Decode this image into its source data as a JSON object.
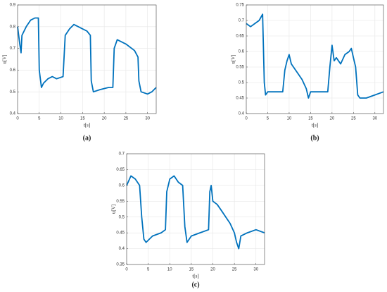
{
  "chart_data": [
    {
      "type": "line",
      "label": "(a)",
      "xlabel": "t[s]",
      "ylabel": "u[V]",
      "color": "#0072bd",
      "grid": true,
      "xlim": [
        0,
        32
      ],
      "xticks": [
        0,
        5,
        10,
        15,
        20,
        25,
        30
      ],
      "ylim": [
        0.4,
        0.9
      ],
      "yticks": [
        0.4,
        0.5,
        0.6,
        0.7,
        0.8,
        0.9
      ],
      "x": [
        0,
        0.5,
        0.8,
        1,
        2,
        3,
        4,
        4.8,
        5,
        5.5,
        6,
        7,
        8,
        9,
        10.5,
        11,
        12,
        13,
        14,
        15,
        16,
        16.8,
        17,
        17.5,
        19,
        21,
        22,
        22.3,
        23,
        25,
        27,
        27.8,
        28,
        28.5,
        30,
        31,
        32
      ],
      "values": [
        0.8,
        0.72,
        0.68,
        0.76,
        0.8,
        0.83,
        0.84,
        0.84,
        0.6,
        0.52,
        0.54,
        0.56,
        0.57,
        0.56,
        0.57,
        0.76,
        0.79,
        0.81,
        0.8,
        0.79,
        0.78,
        0.76,
        0.55,
        0.5,
        0.51,
        0.52,
        0.52,
        0.7,
        0.74,
        0.72,
        0.69,
        0.66,
        0.55,
        0.5,
        0.49,
        0.5,
        0.52
      ]
    },
    {
      "type": "line",
      "label": "(b)",
      "xlabel": "t[s]",
      "ylabel": "u[V]",
      "color": "#0072bd",
      "grid": true,
      "xlim": [
        0,
        32
      ],
      "xticks": [
        0,
        5,
        10,
        15,
        20,
        25,
        30
      ],
      "ylim": [
        0.4,
        0.75
      ],
      "yticks": [
        0.4,
        0.45,
        0.5,
        0.55,
        0.6,
        0.65,
        0.7,
        0.75
      ],
      "x": [
        0,
        1,
        2,
        3,
        3.8,
        4.2,
        4.5,
        5,
        7,
        8.5,
        9,
        9.5,
        10,
        10.5,
        12,
        13,
        14,
        14.5,
        15,
        17,
        19,
        19.5,
        20,
        20.5,
        21,
        22,
        23,
        24,
        24.5,
        25,
        25.5,
        26,
        26.5,
        28,
        30,
        32
      ],
      "values": [
        0.69,
        0.68,
        0.69,
        0.7,
        0.72,
        0.5,
        0.46,
        0.47,
        0.47,
        0.47,
        0.54,
        0.57,
        0.59,
        0.56,
        0.53,
        0.51,
        0.48,
        0.45,
        0.47,
        0.47,
        0.47,
        0.55,
        0.62,
        0.57,
        0.58,
        0.56,
        0.59,
        0.6,
        0.61,
        0.58,
        0.55,
        0.46,
        0.45,
        0.45,
        0.46,
        0.47
      ]
    },
    {
      "type": "line",
      "label": "(c)",
      "xlabel": "t[s]",
      "ylabel": "u[V]",
      "color": "#0072bd",
      "grid": true,
      "xlim": [
        0,
        32
      ],
      "xticks": [
        0,
        5,
        10,
        15,
        20,
        25,
        30
      ],
      "ylim": [
        0.35,
        0.7
      ],
      "yticks": [
        0.35,
        0.4,
        0.45,
        0.5,
        0.55,
        0.6,
        0.65,
        0.7
      ],
      "x": [
        0,
        1,
        2,
        3,
        3.5,
        4,
        4.5,
        6,
        8,
        9,
        9.3,
        10,
        11,
        12,
        13,
        13.5,
        14,
        15,
        17,
        19,
        19.3,
        19.6,
        20,
        21,
        22,
        23,
        24,
        25,
        25.5,
        26,
        26.5,
        28,
        30,
        32
      ],
      "values": [
        0.6,
        0.63,
        0.62,
        0.6,
        0.5,
        0.43,
        0.42,
        0.44,
        0.45,
        0.46,
        0.58,
        0.62,
        0.63,
        0.61,
        0.6,
        0.47,
        0.42,
        0.44,
        0.45,
        0.46,
        0.58,
        0.6,
        0.55,
        0.54,
        0.52,
        0.5,
        0.48,
        0.45,
        0.42,
        0.4,
        0.44,
        0.45,
        0.46,
        0.45
      ]
    }
  ]
}
